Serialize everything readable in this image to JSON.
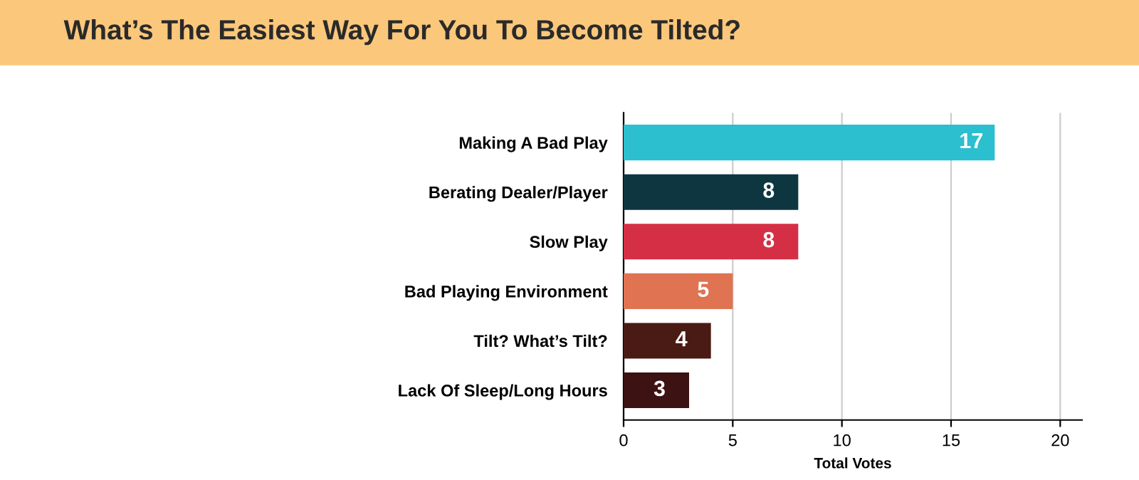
{
  "chart_data": {
    "type": "bar",
    "orientation": "horizontal",
    "title": "What’s The Easiest Way For You To Become Tilted?",
    "xlabel": "Total Votes",
    "categories": [
      "Making A Bad Play",
      "Berating Dealer/Player",
      "Slow Play",
      "Bad Playing Environment",
      "Tilt? What’s Tilt?",
      "Lack Of Sleep/Long Hours"
    ],
    "values": [
      17,
      8,
      8,
      5,
      4,
      3
    ],
    "colors": [
      "#2bbfcf",
      "#0d3640",
      "#d52f45",
      "#e07352",
      "#4a1a14",
      "#3d1212"
    ],
    "xlim": [
      0,
      21
    ],
    "xticks": [
      0,
      5,
      10,
      15,
      20
    ],
    "grid": "x",
    "data_labels": true
  }
}
